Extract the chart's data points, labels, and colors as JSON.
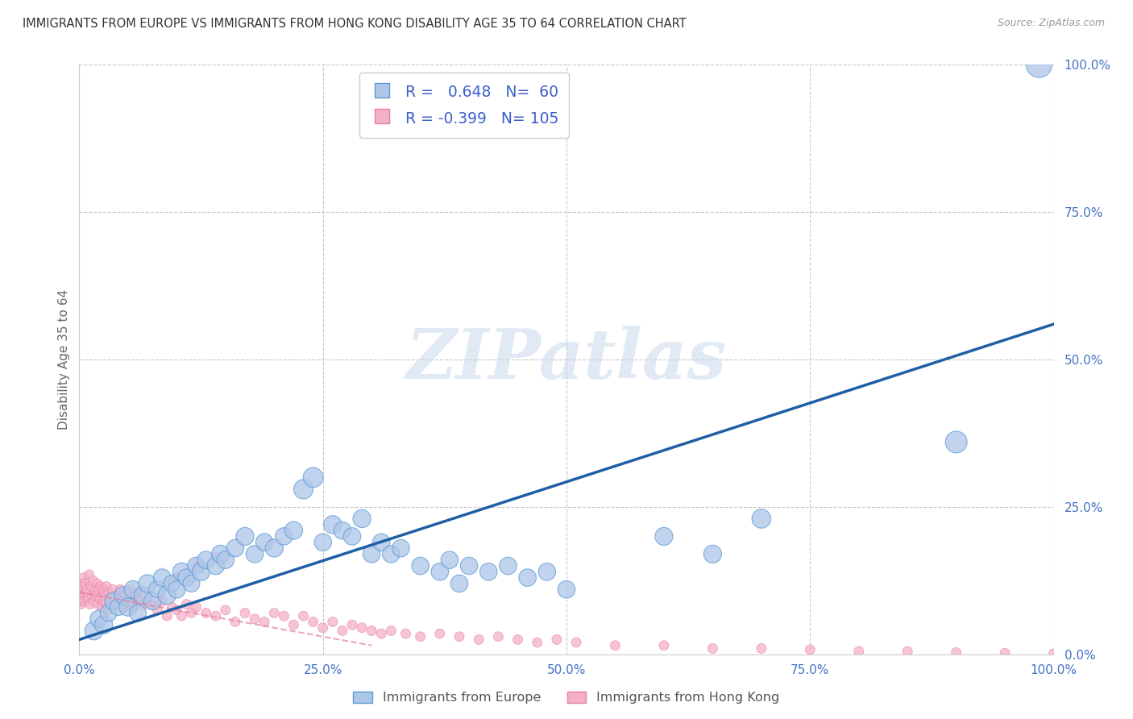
{
  "title": "IMMIGRANTS FROM EUROPE VS IMMIGRANTS FROM HONG KONG DISABILITY AGE 35 TO 64 CORRELATION CHART",
  "source": "Source: ZipAtlas.com",
  "ylabel": "Disability Age 35 to 64",
  "R_europe": 0.648,
  "N_europe": 60,
  "R_hk": -0.399,
  "N_hk": 105,
  "europe_color": "#aec6e8",
  "europe_edge_color": "#5b9bd5",
  "hk_color": "#f4b0c8",
  "hk_edge_color": "#e87fa0",
  "trend_europe_color": "#1f5fa6",
  "trend_hk_color": "#e87fa0",
  "watermark_text": "ZIPatlas",
  "background_color": "#ffffff",
  "grid_color": "#c8c8c8",
  "title_color": "#333333",
  "axis_label_color": "#666666",
  "tick_label_color": "#4472c4",
  "legend_europe": "Immigrants from Europe",
  "legend_hk": "Immigrants from Hong Kong",
  "xlim": [
    0,
    100
  ],
  "ylim": [
    0,
    100
  ],
  "europe_trend_x0": 0,
  "europe_trend_x1": 100,
  "europe_trend_y0": 2.5,
  "europe_trend_y1": 56.0,
  "hk_trend_x0": 0,
  "hk_trend_x1": 30,
  "hk_trend_y0": 10.5,
  "hk_trend_y1": 1.5,
  "europe_scatter_x": [
    1.5,
    2.0,
    2.5,
    3.0,
    3.5,
    4.0,
    4.5,
    5.0,
    5.5,
    6.0,
    6.5,
    7.0,
    7.5,
    8.0,
    8.5,
    9.0,
    9.5,
    10.0,
    10.5,
    11.0,
    11.5,
    12.0,
    12.5,
    13.0,
    14.0,
    14.5,
    15.0,
    16.0,
    17.0,
    18.0,
    19.0,
    20.0,
    21.0,
    22.0,
    23.0,
    24.0,
    25.0,
    26.0,
    27.0,
    28.0,
    29.0,
    30.0,
    31.0,
    32.0,
    33.0,
    35.0,
    37.0,
    38.0,
    39.0,
    40.0,
    42.0,
    44.0,
    46.0,
    48.0,
    50.0,
    60.0,
    65.0,
    70.0,
    90.0,
    98.5
  ],
  "europe_scatter_y": [
    4.0,
    6.0,
    5.0,
    7.0,
    9.0,
    8.0,
    10.0,
    8.0,
    11.0,
    7.0,
    10.0,
    12.0,
    9.0,
    11.0,
    13.0,
    10.0,
    12.0,
    11.0,
    14.0,
    13.0,
    12.0,
    15.0,
    14.0,
    16.0,
    15.0,
    17.0,
    16.0,
    18.0,
    20.0,
    17.0,
    19.0,
    18.0,
    20.0,
    21.0,
    28.0,
    30.0,
    19.0,
    22.0,
    21.0,
    20.0,
    23.0,
    17.0,
    19.0,
    17.0,
    18.0,
    15.0,
    14.0,
    16.0,
    12.0,
    15.0,
    14.0,
    15.0,
    13.0,
    14.0,
    11.0,
    20.0,
    17.0,
    23.0,
    36.0,
    100.0
  ],
  "europe_scatter_sizes": [
    180,
    160,
    170,
    150,
    160,
    150,
    160,
    170,
    160,
    150,
    160,
    170,
    160,
    150,
    160,
    170,
    150,
    160,
    170,
    160,
    150,
    160,
    170,
    160,
    160,
    170,
    160,
    160,
    170,
    160,
    160,
    170,
    160,
    170,
    200,
    210,
    160,
    170,
    160,
    160,
    170,
    160,
    160,
    160,
    160,
    160,
    160,
    160,
    160,
    160,
    160,
    160,
    160,
    160,
    160,
    170,
    170,
    190,
    250,
    350
  ],
  "hk_scatter_x": [
    0.05,
    0.1,
    0.15,
    0.2,
    0.25,
    0.3,
    0.35,
    0.4,
    0.45,
    0.5,
    0.6,
    0.7,
    0.8,
    0.9,
    1.0,
    1.1,
    1.2,
    1.3,
    1.4,
    1.5,
    1.6,
    1.7,
    1.8,
    1.9,
    2.0,
    2.1,
    2.2,
    2.3,
    2.4,
    2.5,
    2.6,
    2.7,
    2.8,
    2.9,
    3.0,
    3.2,
    3.4,
    3.6,
    3.8,
    4.0,
    4.2,
    4.4,
    4.6,
    4.8,
    5.0,
    5.2,
    5.5,
    5.8,
    6.0,
    6.3,
    6.6,
    7.0,
    7.5,
    8.0,
    8.5,
    9.0,
    9.5,
    10.0,
    10.5,
    11.0,
    11.5,
    12.0,
    13.0,
    14.0,
    15.0,
    16.0,
    17.0,
    18.0,
    19.0,
    20.0,
    21.0,
    22.0,
    23.0,
    24.0,
    25.0,
    26.0,
    27.0,
    28.0,
    29.0,
    30.0,
    31.0,
    32.0,
    33.5,
    35.0,
    37.0,
    39.0,
    41.0,
    43.0,
    45.0,
    47.0,
    49.0,
    51.0,
    55.0,
    60.0,
    65.0,
    70.0,
    75.0,
    80.0,
    85.0,
    90.0,
    95.0,
    100.0,
    10.0,
    12.0,
    14.0
  ],
  "hk_scatter_y": [
    9.0,
    10.5,
    8.5,
    11.0,
    9.5,
    12.0,
    10.0,
    11.5,
    13.0,
    9.0,
    12.0,
    10.5,
    11.0,
    9.5,
    13.5,
    8.5,
    11.5,
    10.0,
    12.5,
    9.0,
    11.0,
    10.0,
    12.0,
    8.5,
    11.0,
    9.5,
    11.5,
    8.0,
    11.0,
    9.0,
    10.5,
    9.0,
    11.5,
    7.5,
    10.5,
    9.5,
    11.0,
    8.5,
    10.0,
    9.5,
    11.0,
    9.0,
    8.0,
    10.5,
    9.0,
    11.0,
    8.0,
    10.0,
    9.0,
    10.5,
    8.5,
    9.0,
    8.5,
    7.5,
    9.0,
    6.5,
    8.0,
    7.5,
    6.5,
    8.5,
    7.0,
    8.0,
    7.0,
    6.5,
    7.5,
    5.5,
    7.0,
    6.0,
    5.5,
    7.0,
    6.5,
    5.0,
    6.5,
    5.5,
    4.5,
    5.5,
    4.0,
    5.0,
    4.5,
    4.0,
    3.5,
    4.0,
    3.5,
    3.0,
    3.5,
    3.0,
    2.5,
    3.0,
    2.5,
    2.0,
    2.5,
    2.0,
    1.5,
    1.5,
    1.0,
    1.0,
    0.8,
    0.5,
    0.5,
    0.3,
    0.2,
    0.1,
    13.0,
    15.0,
    16.5
  ],
  "hk_scatter_sizes": [
    25,
    25,
    25,
    25,
    25,
    25,
    25,
    25,
    25,
    25,
    25,
    25,
    25,
    25,
    25,
    25,
    25,
    25,
    25,
    25,
    25,
    25,
    25,
    25,
    25,
    25,
    25,
    25,
    25,
    25,
    25,
    25,
    25,
    25,
    25,
    25,
    25,
    25,
    25,
    25,
    25,
    25,
    25,
    25,
    25,
    25,
    25,
    25,
    25,
    25,
    25,
    25,
    25,
    25,
    25,
    25,
    25,
    25,
    25,
    25,
    25,
    25,
    25,
    25,
    25,
    25,
    25,
    25,
    25,
    25,
    25,
    25,
    25,
    25,
    25,
    25,
    25,
    25,
    25,
    25,
    25,
    25,
    25,
    25,
    25,
    25,
    25,
    25,
    25,
    25,
    25,
    25,
    25,
    25,
    25,
    25,
    25,
    25,
    25,
    25,
    25,
    25,
    25,
    25,
    25
  ]
}
